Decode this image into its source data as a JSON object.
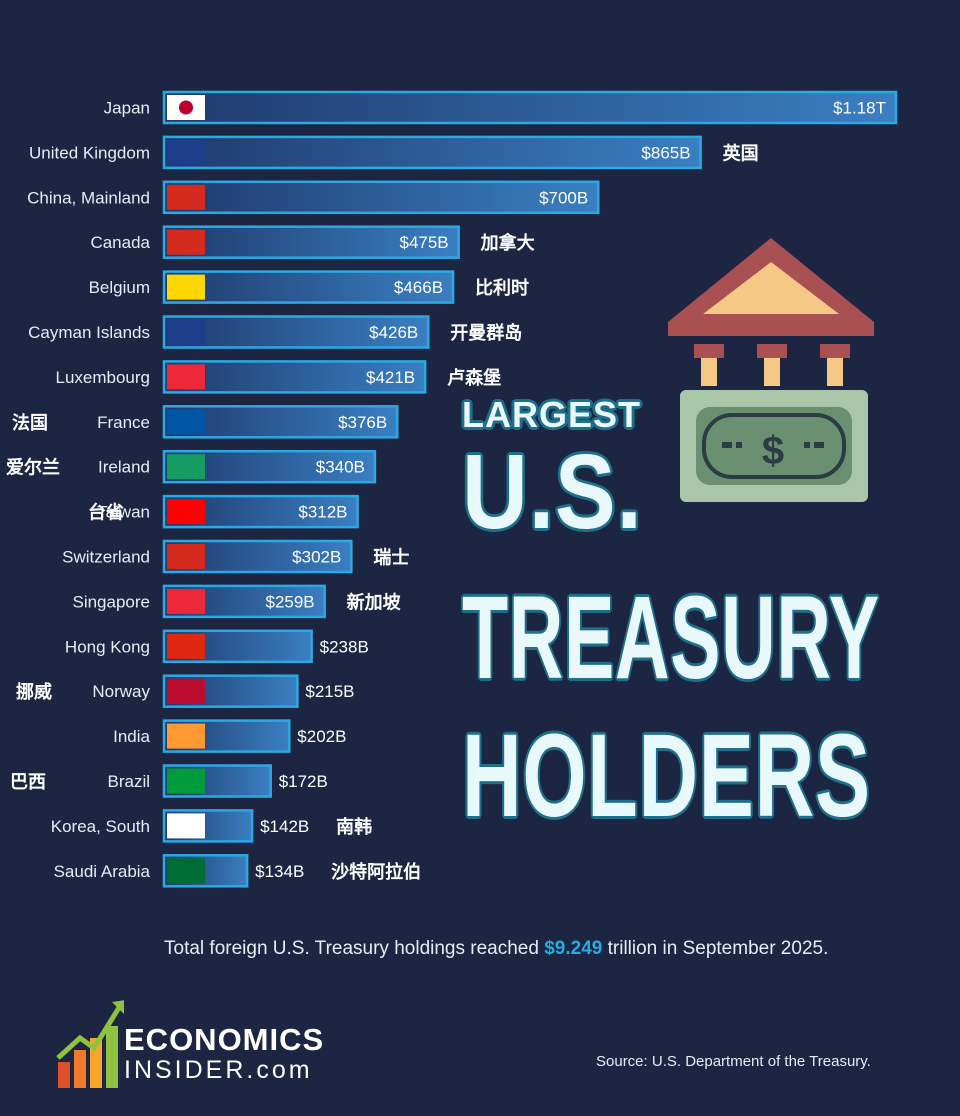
{
  "chart_data": {
    "type": "bar",
    "orientation": "horizontal",
    "title": "LARGEST U.S. TREASURY HOLDERS",
    "title_lines": [
      "LARGEST",
      "U.S.",
      "TREASURY",
      "HOLDERS"
    ],
    "unit": "USD billions",
    "categories": [
      "Japan",
      "United Kingdom",
      "China, Mainland",
      "Canada",
      "Belgium",
      "Cayman Islands",
      "Luxembourg",
      "France",
      "Ireland",
      "Taiwan",
      "Switzerland",
      "Singapore",
      "Hong Kong",
      "Norway",
      "India",
      "Brazil",
      "Korea, South",
      "Saudi Arabia"
    ],
    "values": [
      1180,
      865,
      700,
      475,
      466,
      426,
      421,
      376,
      340,
      312,
      302,
      259,
      238,
      215,
      202,
      172,
      142,
      134
    ],
    "value_labels": [
      "$1.18T",
      "$865B",
      "$700B",
      "$475B",
      "$466B",
      "$426B",
      "$421B",
      "$376B",
      "$340B",
      "$312B",
      "$302B",
      "$259B",
      "$238B",
      "$215B",
      "$202B",
      "$172B",
      "$142B",
      "$134B"
    ],
    "chinese_labels": [
      "",
      "英国",
      "",
      "加拿大",
      "比利时",
      "开曼群岛",
      "卢森堡",
      "法国",
      "爱尔兰",
      "台省",
      "瑞士",
      "新加坡",
      "",
      "挪威",
      "",
      "巴西",
      "南韩",
      "沙特阿拉伯"
    ],
    "xlim": [
      0,
      1180
    ],
    "grid": false,
    "legend": "none",
    "colors": {
      "background": "#1c2642",
      "bar_fill_start": "#1f3a6c",
      "bar_fill_end": "#3a7fc2",
      "bar_border": "#2aa9e4",
      "label_text": "#e6ecf5",
      "title_fill": "#e9f8fb",
      "title_outline": "#1e6f8a",
      "highlight": "#2aa9e4"
    }
  },
  "footnote": {
    "before": "Total foreign U.S. Treasury holdings reached ",
    "highlight": "$9.249",
    "after": " trillion in September 2025."
  },
  "source": "Source: U.S. Department of the Treasury.",
  "logo": {
    "line1": "ECONOMICS",
    "line2": "INSIDER.com"
  },
  "icons": [
    "bank-building-icon",
    "dollar-bill-icon"
  ]
}
